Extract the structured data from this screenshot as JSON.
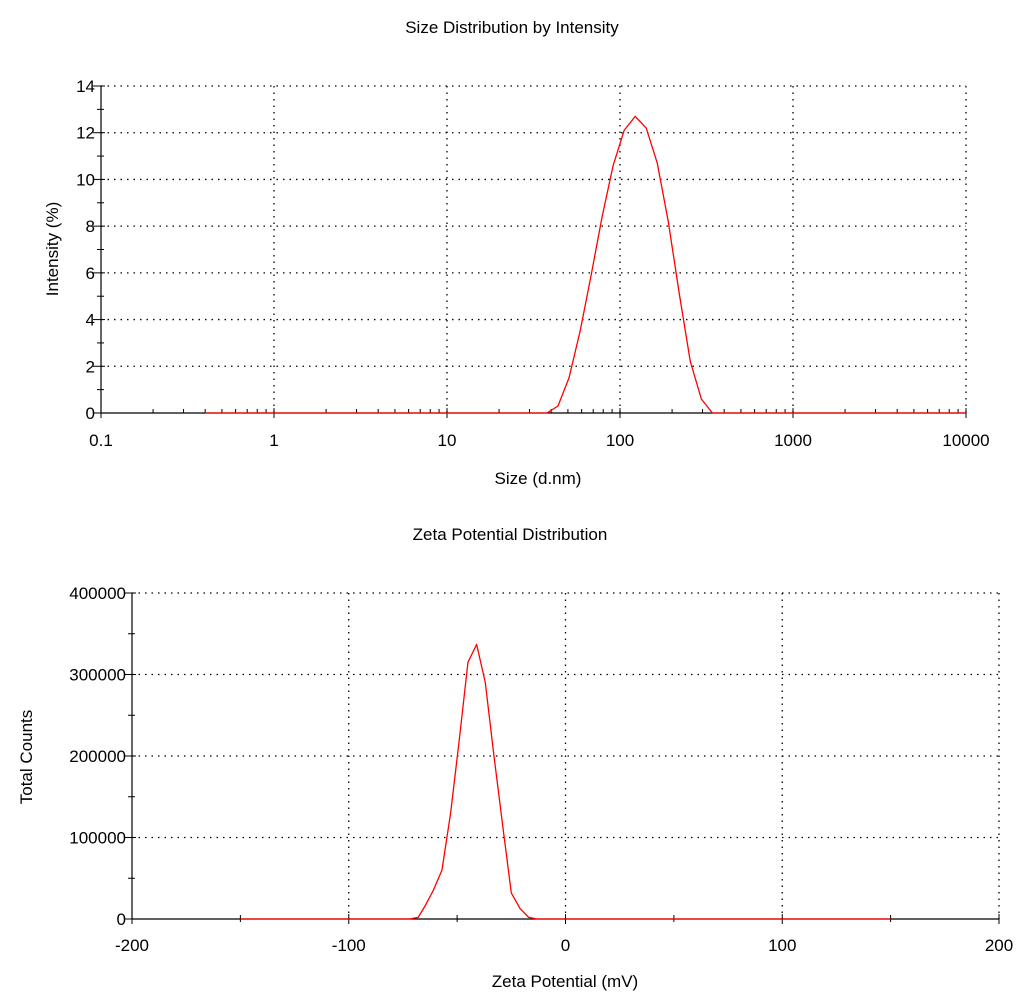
{
  "chart_data": [
    {
      "type": "line",
      "title": "Size Distribution by Intensity",
      "xlabel": "Size (d.nm)",
      "ylabel": "Intensity (%)",
      "x_scale": "log",
      "xlim": [
        0.1,
        10000
      ],
      "ylim": [
        0,
        14
      ],
      "x_ticks": [
        0.1,
        1,
        10,
        100,
        1000,
        10000
      ],
      "x_tick_labels": [
        "0.1",
        "1",
        "10",
        "100",
        "1000",
        "10000"
      ],
      "y_ticks": [
        0,
        2,
        4,
        6,
        8,
        10,
        12,
        14
      ],
      "y_tick_labels": [
        "0",
        "2",
        "4",
        "6",
        "8",
        "10",
        "12",
        "14"
      ],
      "grid": true,
      "series_color": "#ff0000",
      "series": [
        {
          "x": [
            0.4,
            1,
            5,
            10,
            20,
            30,
            37.8,
            43.8,
            50.7,
            58.8,
            68.1,
            78.8,
            91.3,
            105.7,
            122.4,
            141.8,
            164.2,
            190.1,
            220.2,
            255,
            295.3,
            342,
            396.1,
            458.7,
            1000,
            5000,
            10000
          ],
          "y": [
            0,
            0,
            0,
            0,
            0,
            0,
            0,
            0.3,
            1.5,
            3.5,
            5.9,
            8.4,
            10.6,
            12.1,
            12.7,
            12.2,
            10.7,
            8.2,
            5.1,
            2.2,
            0.6,
            0,
            0,
            0,
            0,
            0,
            0
          ]
        }
      ]
    },
    {
      "type": "line",
      "title": "Zeta Potential Distribution",
      "xlabel": "Zeta Potential (mV)",
      "ylabel": "Total Counts",
      "xlim": [
        -200,
        200
      ],
      "ylim": [
        0,
        400000
      ],
      "x_ticks": [
        -200,
        -100,
        0,
        100,
        200
      ],
      "x_tick_labels": [
        "-200",
        "-100",
        "0",
        "100",
        "200"
      ],
      "y_ticks": [
        0,
        100000,
        200000,
        300000,
        400000
      ],
      "y_tick_labels": [
        "0",
        "100000",
        "200000",
        "300000",
        "400000"
      ],
      "grid": true,
      "series_color": "#ff0000",
      "series": [
        {
          "x": [
            -150,
            -100,
            -80,
            -72,
            -68,
            -65,
            -61,
            -57,
            -53,
            -49,
            -45,
            -41,
            -37,
            -33,
            -29,
            -25,
            -21,
            -17,
            -13,
            0,
            50,
            100,
            150
          ],
          "y": [
            0,
            0,
            0,
            0,
            2000,
            15000,
            35000,
            60000,
            130000,
            220000,
            315000,
            337000,
            290000,
            200000,
            115000,
            32000,
            13000,
            2000,
            0,
            0,
            0,
            0,
            0
          ]
        }
      ]
    }
  ]
}
